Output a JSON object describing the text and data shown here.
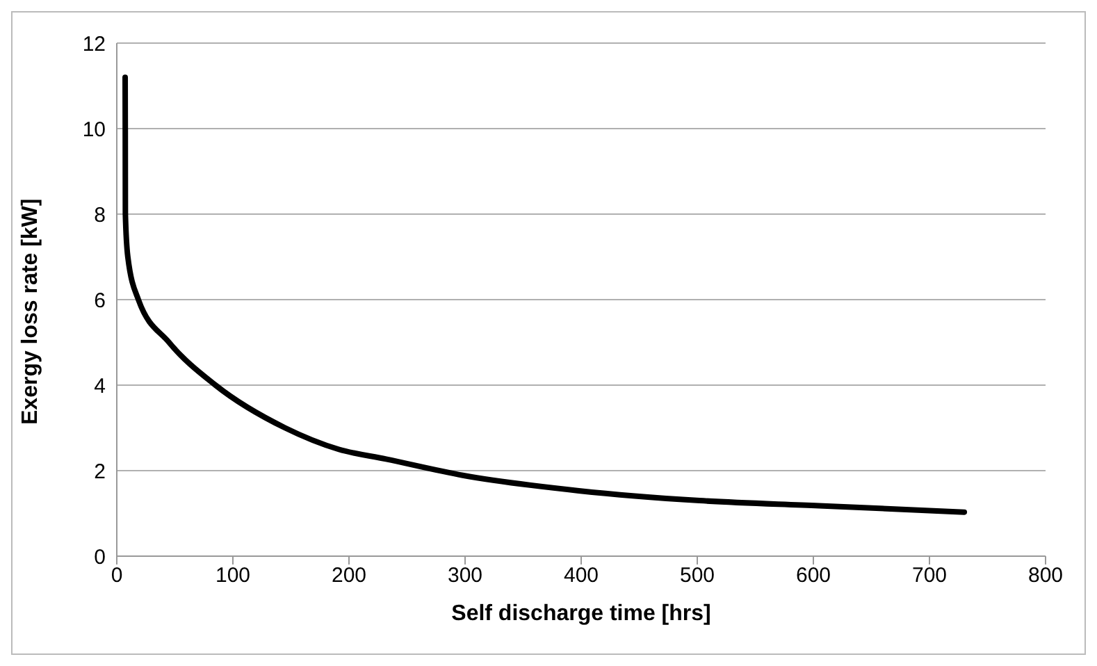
{
  "chart_data": {
    "type": "line",
    "xlabel": "Self discharge time [hrs]",
    "ylabel": "Exergy loss rate [kW]",
    "x": [
      7.2,
      7.3,
      7.4,
      9.5,
      18.6,
      45,
      85,
      145,
      191,
      232,
      298,
      398,
      502,
      605,
      730
    ],
    "series": [
      {
        "color": "#000000",
        "values": [
          11.2,
          10,
          8,
          7,
          6,
          5,
          4,
          3,
          2.5,
          2.27,
          1.89,
          1.53,
          1.3,
          1.18,
          1.03
        ]
      }
    ],
    "xlim": [
      0,
      800
    ],
    "xticks": [
      0,
      100,
      200,
      300,
      400,
      500,
      600,
      700,
      800
    ],
    "ylim": [
      0,
      12
    ],
    "yticks": [
      0,
      2,
      4,
      6,
      8,
      10,
      12
    ],
    "grid": "y",
    "legend": false,
    "marker": "none",
    "line_style": "solid"
  }
}
